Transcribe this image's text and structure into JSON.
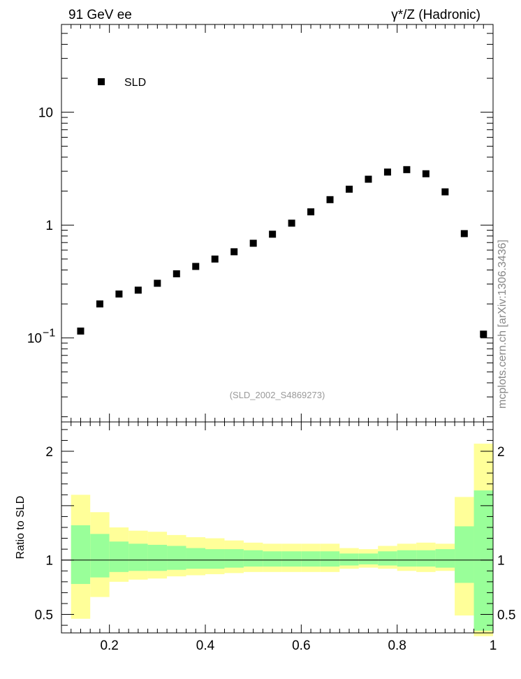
{
  "header": {
    "left": "91 GeV ee",
    "right": "γ*/Z (Hadronic)"
  },
  "side_label": "mcplots.cern.ch [arXiv:1306.3436]",
  "reference_label": "(SLD_2002_S4869273)",
  "colors": {
    "band_outer": "#ffff99",
    "band_inner": "#99ff99",
    "marker": "#000000",
    "reference_text": "#999999",
    "side_text": "#888888"
  },
  "chart_data": [
    {
      "type": "scatter",
      "scale": "log",
      "ylim": [
        0.018,
        60
      ],
      "xlim": [
        0.1,
        1.0
      ],
      "y_ticks": [
        {
          "value": 0.1,
          "base": "10",
          "exp": "−1"
        },
        {
          "value": 1,
          "label": "1"
        },
        {
          "value": 10,
          "label": "10"
        }
      ],
      "legend": {
        "position": "top-left",
        "entries": [
          "SLD"
        ]
      },
      "series": [
        {
          "name": "SLD",
          "x": [
            0.14,
            0.18,
            0.22,
            0.26,
            0.3,
            0.34,
            0.38,
            0.42,
            0.46,
            0.5,
            0.54,
            0.58,
            0.62,
            0.66,
            0.7,
            0.74,
            0.78,
            0.82,
            0.86,
            0.9,
            0.94,
            0.98
          ],
          "values": [
            0.115,
            0.2,
            0.245,
            0.265,
            0.305,
            0.37,
            0.43,
            0.5,
            0.58,
            0.69,
            0.83,
            1.04,
            1.31,
            1.68,
            2.08,
            2.55,
            2.95,
            3.1,
            2.85,
            1.97,
            0.84,
            0.108
          ]
        }
      ]
    },
    {
      "type": "area",
      "ylabel": "Ratio to SLD",
      "ylim": [
        0.33,
        2.27
      ],
      "xlim": [
        0.1,
        1.0
      ],
      "x_ticks": [
        "0.2",
        "0.4",
        "0.6",
        "0.8",
        "1"
      ],
      "x_tick_values": [
        0.2,
        0.4,
        0.6,
        0.8,
        1.0
      ],
      "y_ticks": [
        "0.5",
        "1",
        "2"
      ],
      "y_tick_values": [
        0.5,
        1,
        2
      ],
      "reference_line": 1,
      "bins": {
        "edges": [
          0.12,
          0.16,
          0.2,
          0.24,
          0.28,
          0.32,
          0.36,
          0.4,
          0.44,
          0.48,
          0.52,
          0.56,
          0.6,
          0.64,
          0.68,
          0.72,
          0.76,
          0.8,
          0.84,
          0.88,
          0.92,
          0.96,
          1.0
        ],
        "outer_lo": [
          0.46,
          0.66,
          0.8,
          0.82,
          0.83,
          0.85,
          0.86,
          0.87,
          0.88,
          0.89,
          0.89,
          0.89,
          0.89,
          0.89,
          0.92,
          0.93,
          0.92,
          0.9,
          0.89,
          0.9,
          0.49,
          0.3
        ],
        "outer_hi": [
          1.6,
          1.44,
          1.3,
          1.27,
          1.26,
          1.23,
          1.21,
          1.2,
          1.18,
          1.16,
          1.15,
          1.15,
          1.15,
          1.15,
          1.11,
          1.1,
          1.13,
          1.15,
          1.16,
          1.15,
          1.58,
          2.07
        ],
        "inner_lo": [
          0.78,
          0.84,
          0.89,
          0.9,
          0.9,
          0.91,
          0.92,
          0.92,
          0.93,
          0.94,
          0.94,
          0.94,
          0.94,
          0.94,
          0.95,
          0.96,
          0.95,
          0.94,
          0.94,
          0.93,
          0.79,
          0.35
        ],
        "inner_hi": [
          1.32,
          1.24,
          1.17,
          1.15,
          1.14,
          1.13,
          1.11,
          1.1,
          1.1,
          1.09,
          1.08,
          1.08,
          1.08,
          1.08,
          1.06,
          1.06,
          1.08,
          1.09,
          1.09,
          1.1,
          1.31,
          1.64
        ]
      }
    }
  ]
}
